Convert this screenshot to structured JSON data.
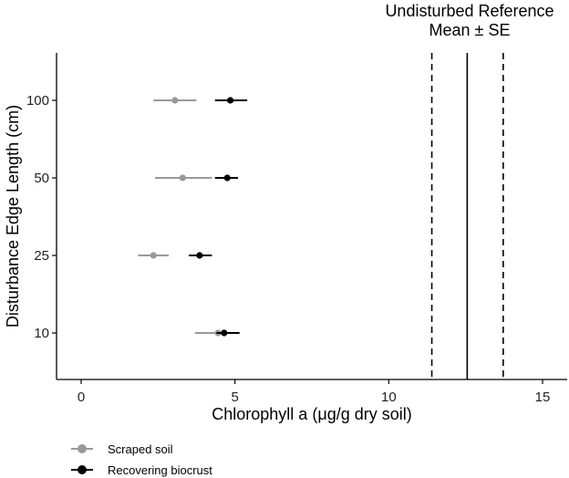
{
  "chart_data": {
    "type": "scatter",
    "orientation": "horizontal-error-bars",
    "xlabel": "Chlorophyll a (μg/g dry soil)",
    "ylabel": "Disturbance Edge Length (cm)",
    "xlim": [
      -0.8,
      15.8
    ],
    "xticks": [
      0,
      5,
      10,
      15
    ],
    "categories": [
      "10",
      "25",
      "50",
      "100"
    ],
    "grid": false,
    "legend_position": "bottom-left",
    "series": [
      {
        "name": "Scraped soil",
        "color": "#999999",
        "points": [
          {
            "category": "100",
            "mean": 3.05,
            "low": 2.35,
            "high": 3.75
          },
          {
            "category": "50",
            "mean": 3.3,
            "low": 2.4,
            "high": 4.25
          },
          {
            "category": "25",
            "mean": 2.35,
            "low": 1.85,
            "high": 2.85
          },
          {
            "category": "10",
            "mean": 4.45,
            "low": 3.7,
            "high": 5.1
          }
        ]
      },
      {
        "name": "Recovering biocrust",
        "color": "#000000",
        "points": [
          {
            "category": "100",
            "mean": 4.85,
            "low": 4.35,
            "high": 5.4
          },
          {
            "category": "50",
            "mean": 4.75,
            "low": 4.35,
            "high": 5.1
          },
          {
            "category": "25",
            "mean": 3.85,
            "low": 3.5,
            "high": 4.25
          },
          {
            "category": "10",
            "mean": 4.65,
            "low": 4.4,
            "high": 5.15
          }
        ]
      }
    ],
    "reference": {
      "label_line1": "Undisturbed Reference",
      "label_line2": "Mean  ± SE",
      "mean": 12.55,
      "se_low": 11.4,
      "se_high": 13.72
    }
  }
}
